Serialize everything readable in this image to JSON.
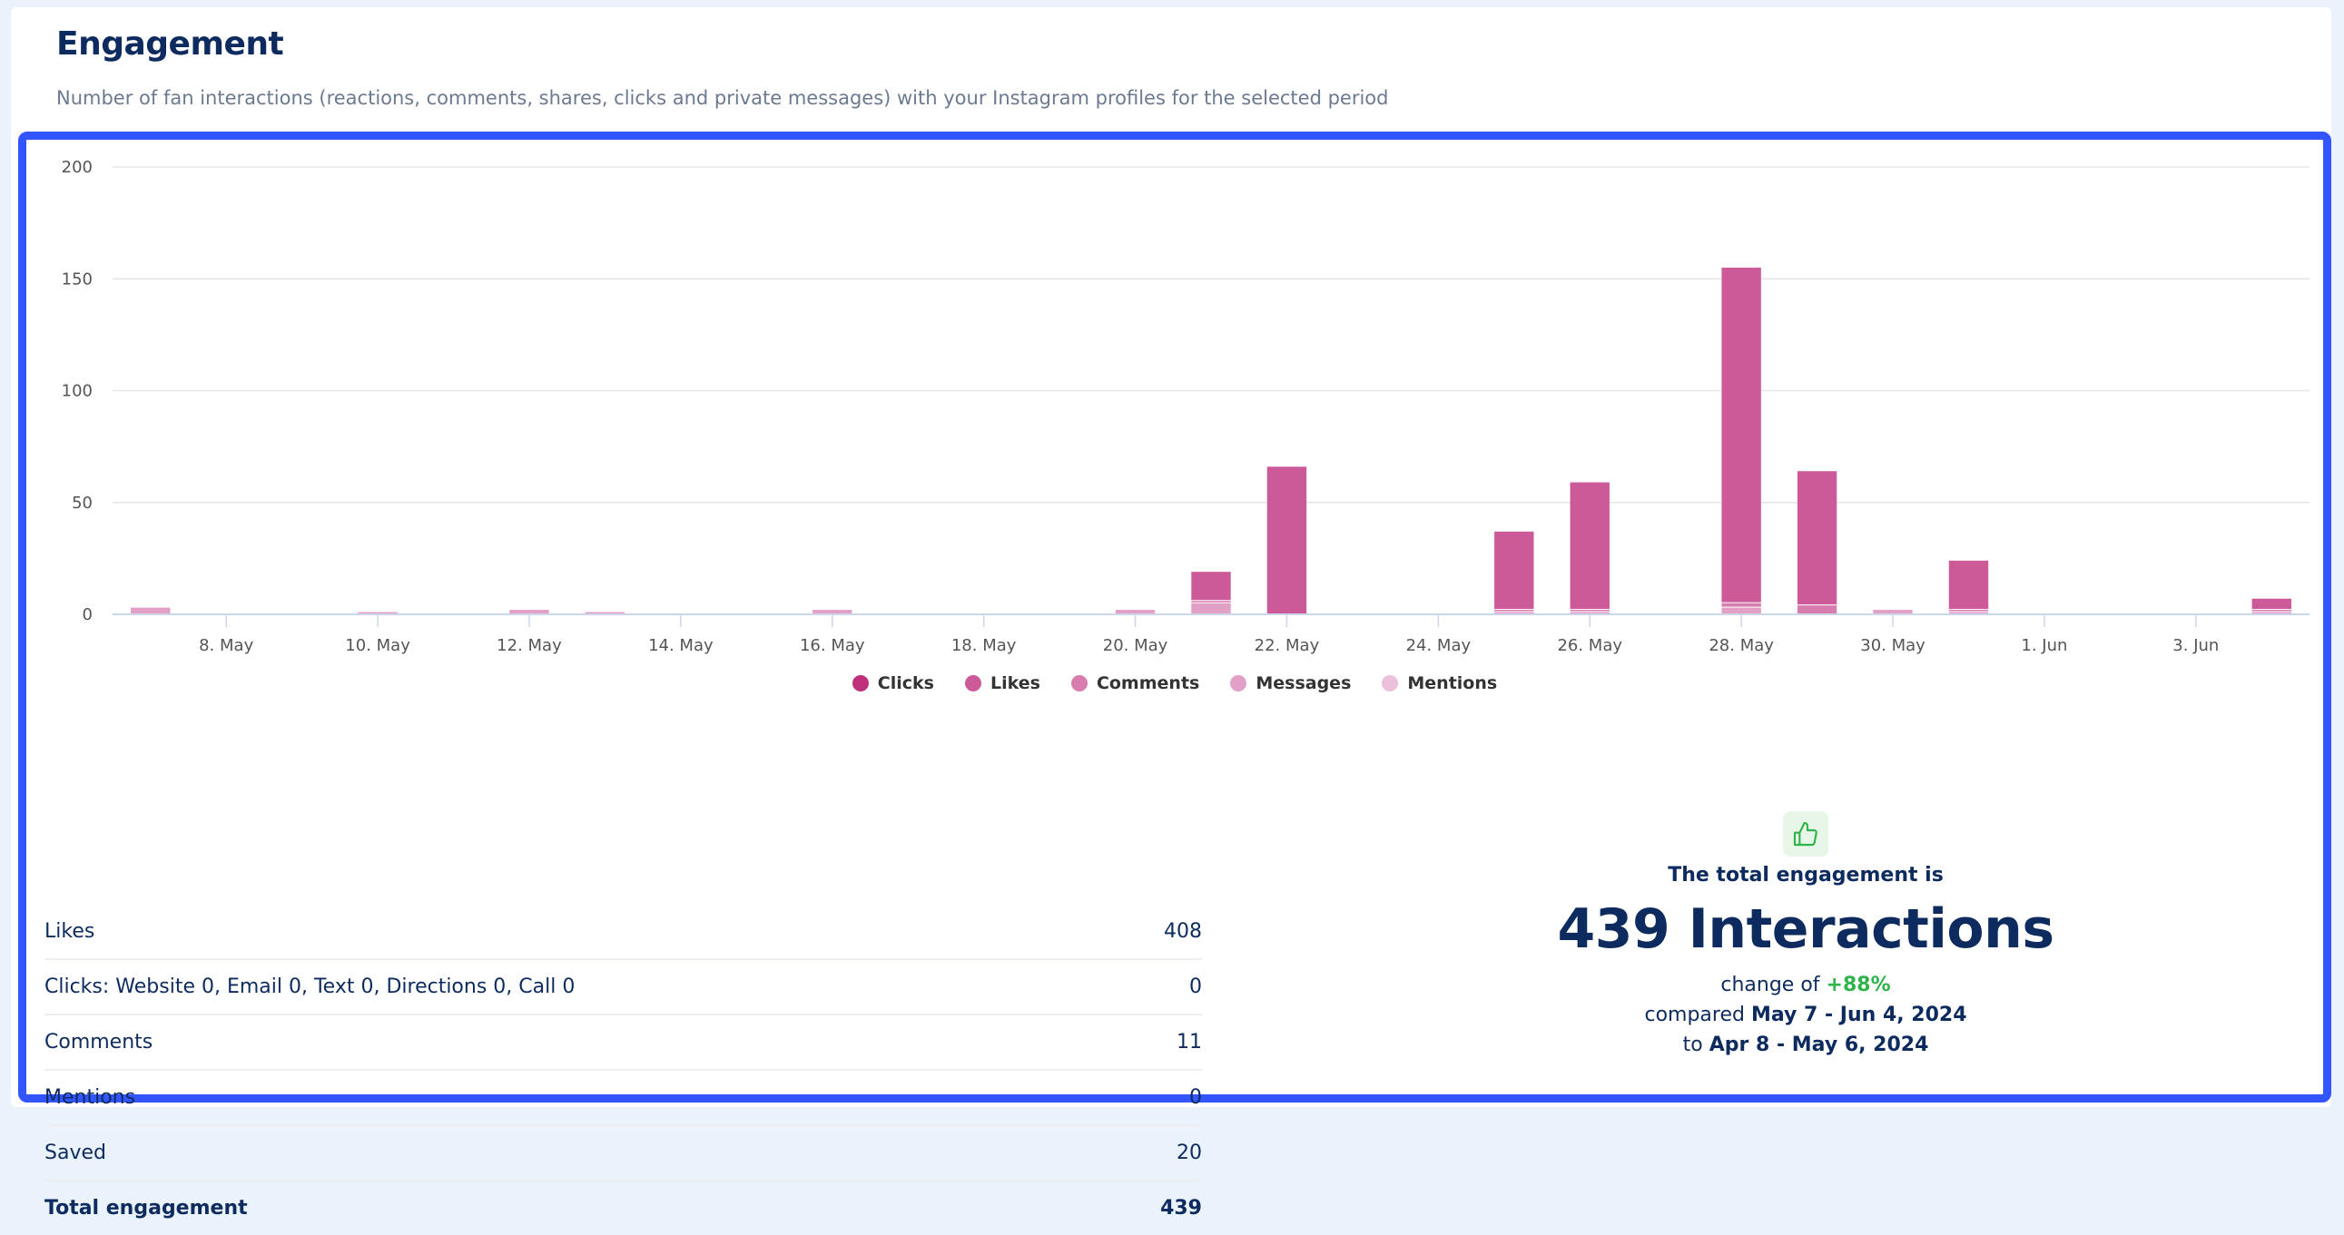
{
  "header": {
    "title": "Engagement",
    "subtitle": "Number of fan interactions (reactions, comments, shares, clicks and private messages) with your Instagram profiles for the selected period"
  },
  "chart_data": {
    "type": "bar",
    "stacked": true,
    "ylim": [
      0,
      200
    ],
    "yticks": [
      0,
      50,
      100,
      150,
      200
    ],
    "grid": true,
    "legend_position": "bottom-center",
    "x": [
      "May 7",
      "May 8",
      "May 9",
      "May 10",
      "May 11",
      "May 12",
      "May 13",
      "May 14",
      "May 15",
      "May 16",
      "May 17",
      "May 18",
      "May 19",
      "May 20",
      "May 21",
      "May 22",
      "May 23",
      "May 24",
      "May 25",
      "May 26",
      "May 27",
      "May 28",
      "May 29",
      "May 30",
      "May 31",
      "Jun 1",
      "Jun 2",
      "Jun 3",
      "Jun 4"
    ],
    "xtick_labels": [
      "8. May",
      "10. May",
      "12. May",
      "14. May",
      "16. May",
      "18. May",
      "20. May",
      "22. May",
      "24. May",
      "26. May",
      "28. May",
      "30. May",
      "1. Jun",
      "3. Jun"
    ],
    "series": [
      {
        "name": "Clicks",
        "color": "#c0307a",
        "values": [
          0,
          0,
          0,
          0,
          0,
          0,
          0,
          0,
          0,
          0,
          0,
          0,
          0,
          0,
          0,
          0,
          0,
          0,
          0,
          0,
          0,
          0,
          0,
          0,
          0,
          0,
          0,
          0,
          0
        ]
      },
      {
        "name": "Likes",
        "color": "#cc5a98",
        "values": [
          0,
          0,
          0,
          0,
          0,
          0,
          0,
          0,
          0,
          0,
          0,
          0,
          0,
          0,
          13,
          66,
          0,
          0,
          35,
          57,
          0,
          150,
          60,
          0,
          22,
          0,
          0,
          0,
          5
        ]
      },
      {
        "name": "Comments",
        "color": "#d97db0",
        "values": [
          0,
          0,
          0,
          0,
          0,
          0,
          0,
          0,
          0,
          0,
          0,
          0,
          0,
          0,
          1,
          0,
          0,
          0,
          1,
          1,
          0,
          2,
          4,
          0,
          1,
          0,
          0,
          0,
          1
        ]
      },
      {
        "name": "Messages",
        "color": "#e3a0c6",
        "values": [
          3,
          0,
          0,
          1,
          0,
          2,
          1,
          0,
          0,
          2,
          0,
          0,
          0,
          2,
          5,
          0,
          0,
          0,
          1,
          1,
          0,
          3,
          0,
          2,
          1,
          0,
          0,
          0,
          1
        ]
      },
      {
        "name": "Mentions",
        "color": "#ecc0da",
        "values": [
          0,
          0,
          0,
          0,
          0,
          0,
          0,
          0,
          0,
          0,
          0,
          0,
          0,
          0,
          0,
          0,
          0,
          0,
          0,
          0,
          0,
          0,
          0,
          0,
          0,
          0,
          0,
          0,
          0
        ]
      }
    ]
  },
  "table": {
    "rows": [
      {
        "label": "Likes",
        "value": "408"
      },
      {
        "label": "Clicks: Website 0, Email 0, Text 0, Directions 0, Call 0",
        "value": "0"
      },
      {
        "label": "Comments",
        "value": "11"
      },
      {
        "label": "Mentions",
        "value": "0"
      },
      {
        "label": "Saved",
        "value": "20"
      },
      {
        "label": "Total engagement",
        "value": "439"
      }
    ]
  },
  "summary": {
    "icon": "thumbs-up-icon",
    "intro": "The total engagement is",
    "total": "439 Interactions",
    "change_prefix": "change of",
    "change": "+88%",
    "compared_prefix": "compared",
    "period": "May 7 - Jun 4, 2024",
    "to_prefix": "to",
    "previous_period": "Apr 8 - May 6, 2024",
    "accent": "#2fb34a"
  }
}
